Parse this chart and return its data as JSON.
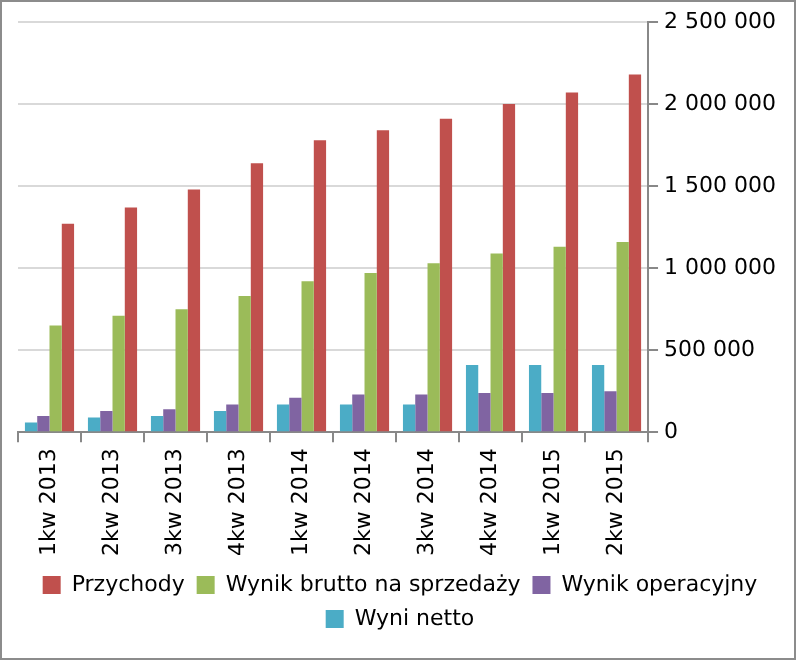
{
  "chart_data": {
    "type": "bar",
    "categories": [
      "1kw 2013",
      "2kw 2013",
      "3kw 2013",
      "4kw 2013",
      "1kw 2014",
      "2kw 2014",
      "3kw 2014",
      "4kw 2014",
      "1kw 2015",
      "2kw 2015"
    ],
    "series": [
      {
        "name": "Przychody",
        "color": "#c0504d",
        "values": [
          1270000,
          1370000,
          1480000,
          1640000,
          1780000,
          1840000,
          1910000,
          2000000,
          2070000,
          2180000
        ]
      },
      {
        "name": "Wynik brutto na sprzedaży",
        "color": "#9bbb59",
        "values": [
          650000,
          710000,
          750000,
          830000,
          920000,
          970000,
          1030000,
          1090000,
          1130000,
          1160000
        ]
      },
      {
        "name": "Wynik operacyjny",
        "color": "#8064a2",
        "values": [
          100000,
          130000,
          140000,
          170000,
          210000,
          230000,
          230000,
          240000,
          240000,
          250000
        ]
      },
      {
        "name": "Wyni netto",
        "color": "#4bacc6",
        "values": [
          60000,
          90000,
          100000,
          130000,
          170000,
          170000,
          170000,
          410000,
          410000,
          410000
        ]
      }
    ],
    "ylim": [
      0,
      2500000
    ],
    "yticks": [
      0,
      {
        "value": 500000,
        "label": "500 000"
      },
      {
        "value": 1000000,
        "label": "1 000 000"
      },
      {
        "value": 1500000,
        "label": "1 500 000"
      },
      {
        "value": 2000000,
        "label": "2 000 000"
      },
      {
        "value": 2500000,
        "label": "2 500 000"
      }
    ],
    "grid": "y",
    "legend": "bottom"
  }
}
